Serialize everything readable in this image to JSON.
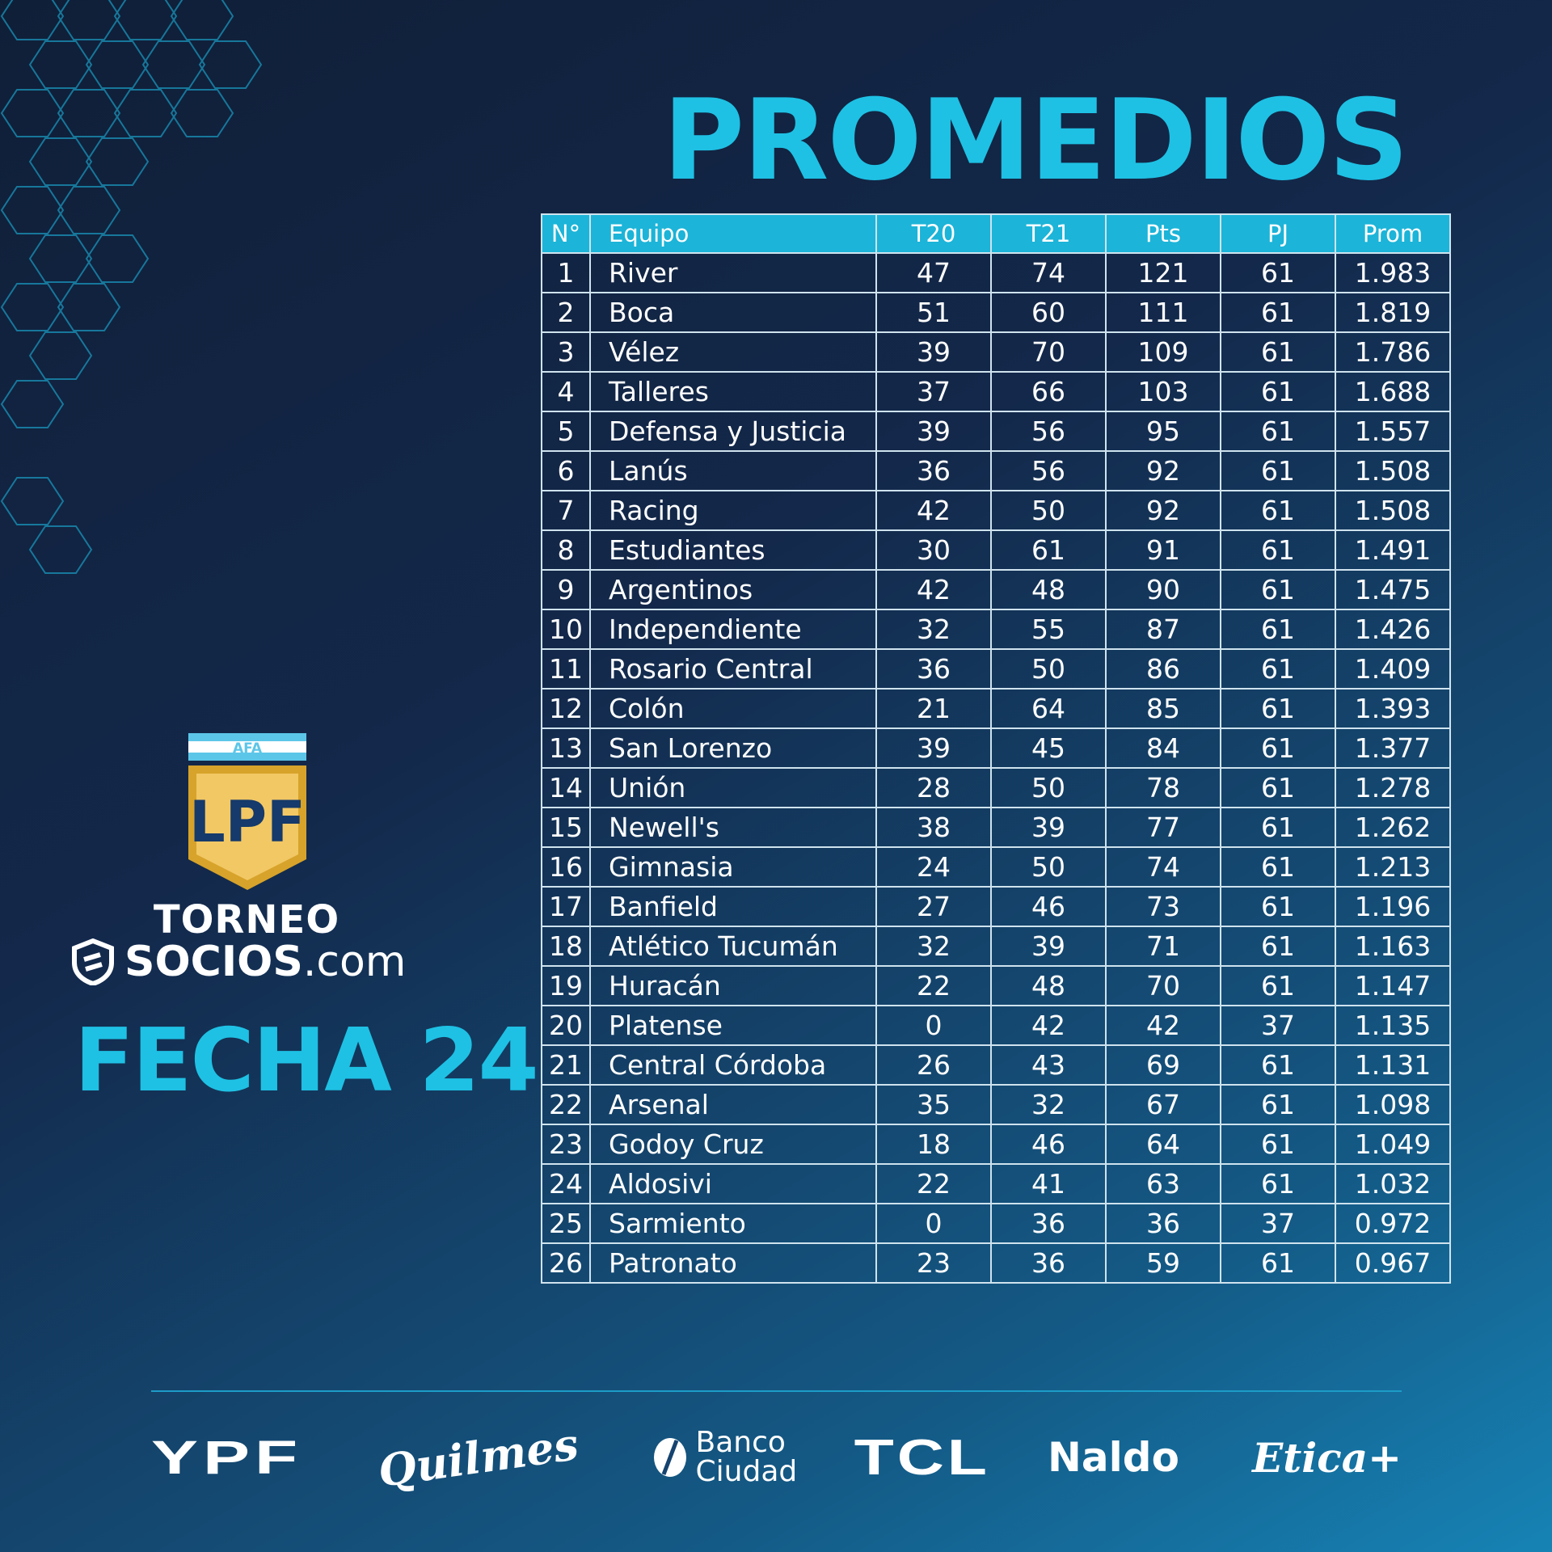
{
  "title": "PROMEDIOS",
  "table": {
    "headers": [
      "N°",
      "Equipo",
      "T20",
      "T21",
      "Pts",
      "PJ",
      "Prom"
    ],
    "rows": [
      [
        "1",
        "River",
        "47",
        "74",
        "121",
        "61",
        "1.983"
      ],
      [
        "2",
        "Boca",
        "51",
        "60",
        "111",
        "61",
        "1.819"
      ],
      [
        "3",
        "Vélez",
        "39",
        "70",
        "109",
        "61",
        "1.786"
      ],
      [
        "4",
        "Talleres",
        "37",
        "66",
        "103",
        "61",
        "1.688"
      ],
      [
        "5",
        "Defensa y Justicia",
        "39",
        "56",
        "95",
        "61",
        "1.557"
      ],
      [
        "6",
        "Lanús",
        "36",
        "56",
        "92",
        "61",
        "1.508"
      ],
      [
        "7",
        "Racing",
        "42",
        "50",
        "92",
        "61",
        "1.508"
      ],
      [
        "8",
        "Estudiantes",
        "30",
        "61",
        "91",
        "61",
        "1.491"
      ],
      [
        "9",
        "Argentinos",
        "42",
        "48",
        "90",
        "61",
        "1.475"
      ],
      [
        "10",
        "Independiente",
        "32",
        "55",
        "87",
        "61",
        "1.426"
      ],
      [
        "11",
        "Rosario Central",
        "36",
        "50",
        "86",
        "61",
        "1.409"
      ],
      [
        "12",
        "Colón",
        "21",
        "64",
        "85",
        "61",
        "1.393"
      ],
      [
        "13",
        "San Lorenzo",
        "39",
        "45",
        "84",
        "61",
        "1.377"
      ],
      [
        "14",
        "Unión",
        "28",
        "50",
        "78",
        "61",
        "1.278"
      ],
      [
        "15",
        "Newell's",
        "38",
        "39",
        "77",
        "61",
        "1.262"
      ],
      [
        "16",
        "Gimnasia",
        "24",
        "50",
        "74",
        "61",
        "1.213"
      ],
      [
        "17",
        "Banfield",
        "27",
        "46",
        "73",
        "61",
        "1.196"
      ],
      [
        "18",
        "Atlético Tucumán",
        "32",
        "39",
        "71",
        "61",
        "1.163"
      ],
      [
        "19",
        "Huracán",
        "22",
        "48",
        "70",
        "61",
        "1.147"
      ],
      [
        "20",
        "Platense",
        "0",
        "42",
        "42",
        "37",
        "1.135"
      ],
      [
        "21",
        "Central Córdoba",
        "26",
        "43",
        "69",
        "61",
        "1.131"
      ],
      [
        "22",
        "Arsenal",
        "35",
        "32",
        "67",
        "61",
        "1.098"
      ],
      [
        "23",
        "Godoy Cruz",
        "18",
        "46",
        "64",
        "61",
        "1.049"
      ],
      [
        "24",
        "Aldosivi",
        "22",
        "41",
        "63",
        "61",
        "1.032"
      ],
      [
        "25",
        "Sarmiento",
        "0",
        "36",
        "36",
        "37",
        "0.972"
      ],
      [
        "26",
        "Patronato",
        "23",
        "36",
        "59",
        "61",
        "0.967"
      ]
    ]
  },
  "league": {
    "badge_top": "AFA",
    "badge_letters": "LPF",
    "torneo": "TORNEO",
    "socios": "SOCIOS",
    "socios_suffix": ".com",
    "fecha": "FECHA 24"
  },
  "sponsors": {
    "ypf": "YPF",
    "quilmes": "Quilmes",
    "banco_line1": "Banco",
    "banco_line2": "Ciudad",
    "tcl": "TCL",
    "naldo": "Naldo",
    "etica": "Etica+"
  },
  "colors": {
    "accent": "#1ec1e4",
    "header_bg": "#1cb4d8",
    "badge_gold": "#f2c865",
    "badge_navy": "#153a6b"
  }
}
